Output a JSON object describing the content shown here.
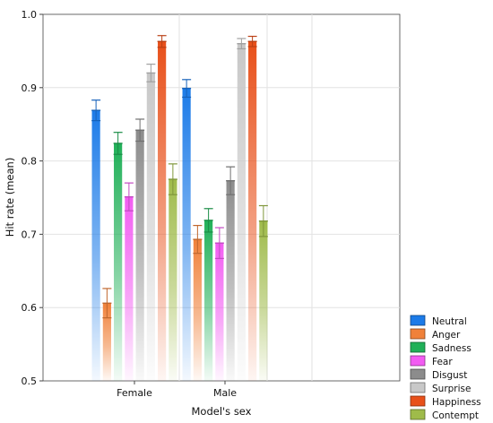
{
  "chart_data": {
    "type": "bar",
    "categories": [
      "Female",
      "Male"
    ],
    "xlabel": "Model's sex",
    "ylabel": "Hit rate (mean)",
    "ylim": [
      0.5,
      1.0
    ],
    "yticks": [
      "0.5",
      "0.6",
      "0.7",
      "0.8",
      "0.9",
      "1.0"
    ],
    "grid": true,
    "error_bars": true,
    "legend_position": "bottom-right",
    "series": [
      {
        "name": "Neutral",
        "color": "#1c7be8",
        "values": [
          0.869,
          0.899
        ],
        "err": [
          0.014,
          0.012
        ]
      },
      {
        "name": "Anger",
        "color": "#f0813a",
        "values": [
          0.606,
          0.693
        ],
        "err": [
          0.02,
          0.019
        ]
      },
      {
        "name": "Sadness",
        "color": "#20b058",
        "values": [
          0.824,
          0.719
        ],
        "err": [
          0.015,
          0.016
        ]
      },
      {
        "name": "Fear",
        "color": "#f25cf2",
        "values": [
          0.751,
          0.688
        ],
        "err": [
          0.019,
          0.021
        ]
      },
      {
        "name": "Disgust",
        "color": "#8c8c8c",
        "values": [
          0.842,
          0.773
        ],
        "err": [
          0.015,
          0.019
        ]
      },
      {
        "name": "Surprise",
        "color": "#c8c8c8",
        "values": [
          0.92,
          0.96
        ],
        "err": [
          0.012,
          0.007
        ]
      },
      {
        "name": "Happiness",
        "color": "#e8501a",
        "values": [
          0.963,
          0.963
        ],
        "err": [
          0.008,
          0.007
        ]
      },
      {
        "name": "Contempt",
        "color": "#9fbb4a",
        "values": [
          0.775,
          0.718
        ],
        "err": [
          0.021,
          0.021
        ]
      }
    ]
  }
}
